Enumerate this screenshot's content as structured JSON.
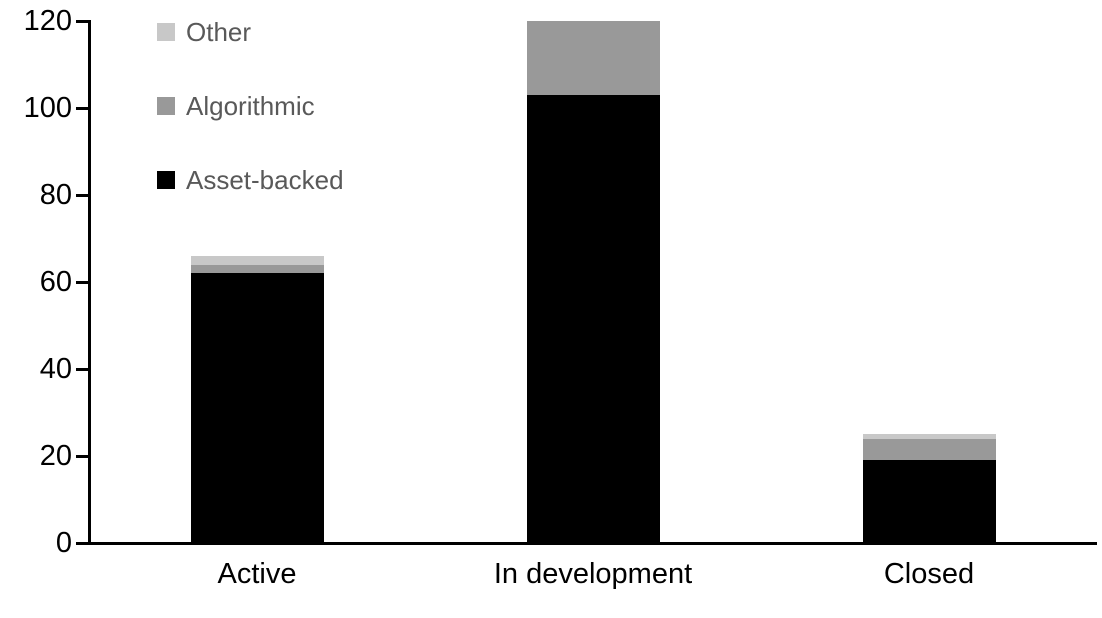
{
  "chart_data": {
    "type": "bar",
    "subtype": "stacked",
    "title": "",
    "xlabel": "",
    "ylabel": "",
    "categories": [
      "Active",
      "In development",
      "Closed"
    ],
    "series": [
      {
        "name": "Asset-backed",
        "color": "#000000",
        "values": [
          62,
          103,
          19
        ]
      },
      {
        "name": "Algorithmic",
        "color": "#999999",
        "values": [
          2,
          17,
          5
        ]
      },
      {
        "name": "Other",
        "color": "#c8c8c8",
        "values": [
          2,
          0,
          1
        ]
      }
    ],
    "totals": [
      66,
      120,
      25
    ],
    "ylim": [
      0,
      120
    ],
    "yticks": [
      "0",
      "20",
      "40",
      "60",
      "80",
      "100",
      "120"
    ],
    "grid": "off",
    "legend": {
      "position": "top-left-inside",
      "order": [
        "Other",
        "Algorithmic",
        "Asset-backed"
      ],
      "text_color": "#595959"
    },
    "colors": {
      "axis": "#000000",
      "background": "#ffffff"
    }
  }
}
